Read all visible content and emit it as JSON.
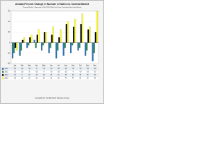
{
  "chart_data": {
    "type": "bar",
    "title": "Arvada Percent Change in Number of Sales vs. Normal Market",
    "subtitle": "\"Normal Market\" = Average of 2002-2007 Mid-Cycle Data, Excluding Short-Sale Activity",
    "categories": [
      "Jan",
      "Feb",
      "Mar",
      "Apr",
      "May",
      "Jun",
      "Jul",
      "Aug",
      "Sep",
      "Oct",
      "Nov",
      "Dec"
    ],
    "series": [
      {
        "name": "2010",
        "color": "#2e75b6",
        "values": [
          -30,
          -25,
          -10,
          5,
          -15,
          -20,
          -30,
          -25,
          -20,
          -15,
          -25,
          -35
        ]
      },
      {
        "name": "2011",
        "color": "#2e8b57",
        "values": [
          -20,
          -15,
          -5,
          -10,
          -5,
          -10,
          -15,
          -10,
          -5,
          -10,
          -15,
          -20
        ]
      },
      {
        "name": "2012",
        "color": "#000000",
        "values": [
          -10,
          5,
          10,
          15,
          20,
          15,
          10,
          35,
          30,
          35,
          25,
          20
        ]
      },
      {
        "name": "2013",
        "color": "#ffff33",
        "values": [
          -15,
          10,
          15,
          25,
          20,
          30,
          25,
          40,
          45,
          55,
          30,
          60
        ]
      }
    ],
    "ylim": [
      -40,
      60
    ],
    "yticks": [
      -40,
      -20,
      0,
      20,
      40,
      60
    ],
    "grid": true,
    "footer": "Compiled by The Brewster Harrison Group"
  }
}
